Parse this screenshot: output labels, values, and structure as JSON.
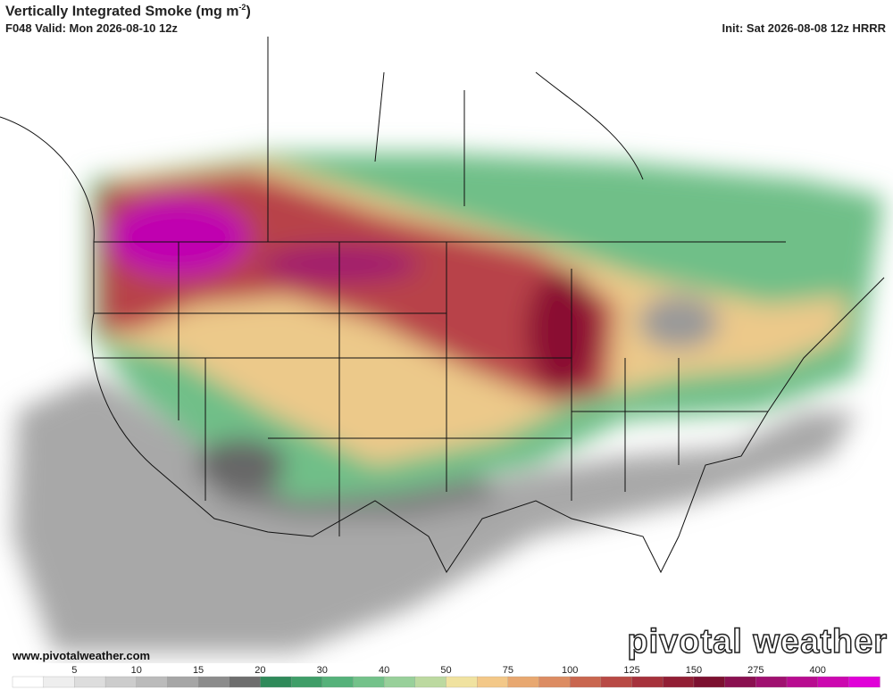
{
  "header": {
    "title": "Vertically Integrated Smoke (mg m",
    "title_exp": "-2",
    "title_end": ")",
    "valid": "F048 Valid: Mon 2026-08-10 12z",
    "init": "Init: Sat 2026-08-08 12z HRRR"
  },
  "footer": {
    "url": "www.pivotalweather.com",
    "logo": "pivotal weather"
  },
  "colorbar": {
    "labels": [
      5,
      10,
      15,
      20,
      30,
      40,
      50,
      75,
      100,
      125,
      150,
      275,
      400
    ],
    "colors": [
      "#ffffff",
      "#eeeeee",
      "#dddddd",
      "#cccccc",
      "#bbbbbb",
      "#a6a6a6",
      "#8c8c8c",
      "#6e6e6e",
      "#2f8a5a",
      "#3f9e68",
      "#55b27a",
      "#73c28a",
      "#98d09a",
      "#bcd9a0",
      "#f0e2a0",
      "#f3c888",
      "#e8a870",
      "#dc8c62",
      "#c9664f",
      "#b84a45",
      "#a6323c",
      "#921f35",
      "#7c1030",
      "#8a1050",
      "#a01070",
      "#b80c90",
      "#cc08b0",
      "#e000d8"
    ]
  }
}
